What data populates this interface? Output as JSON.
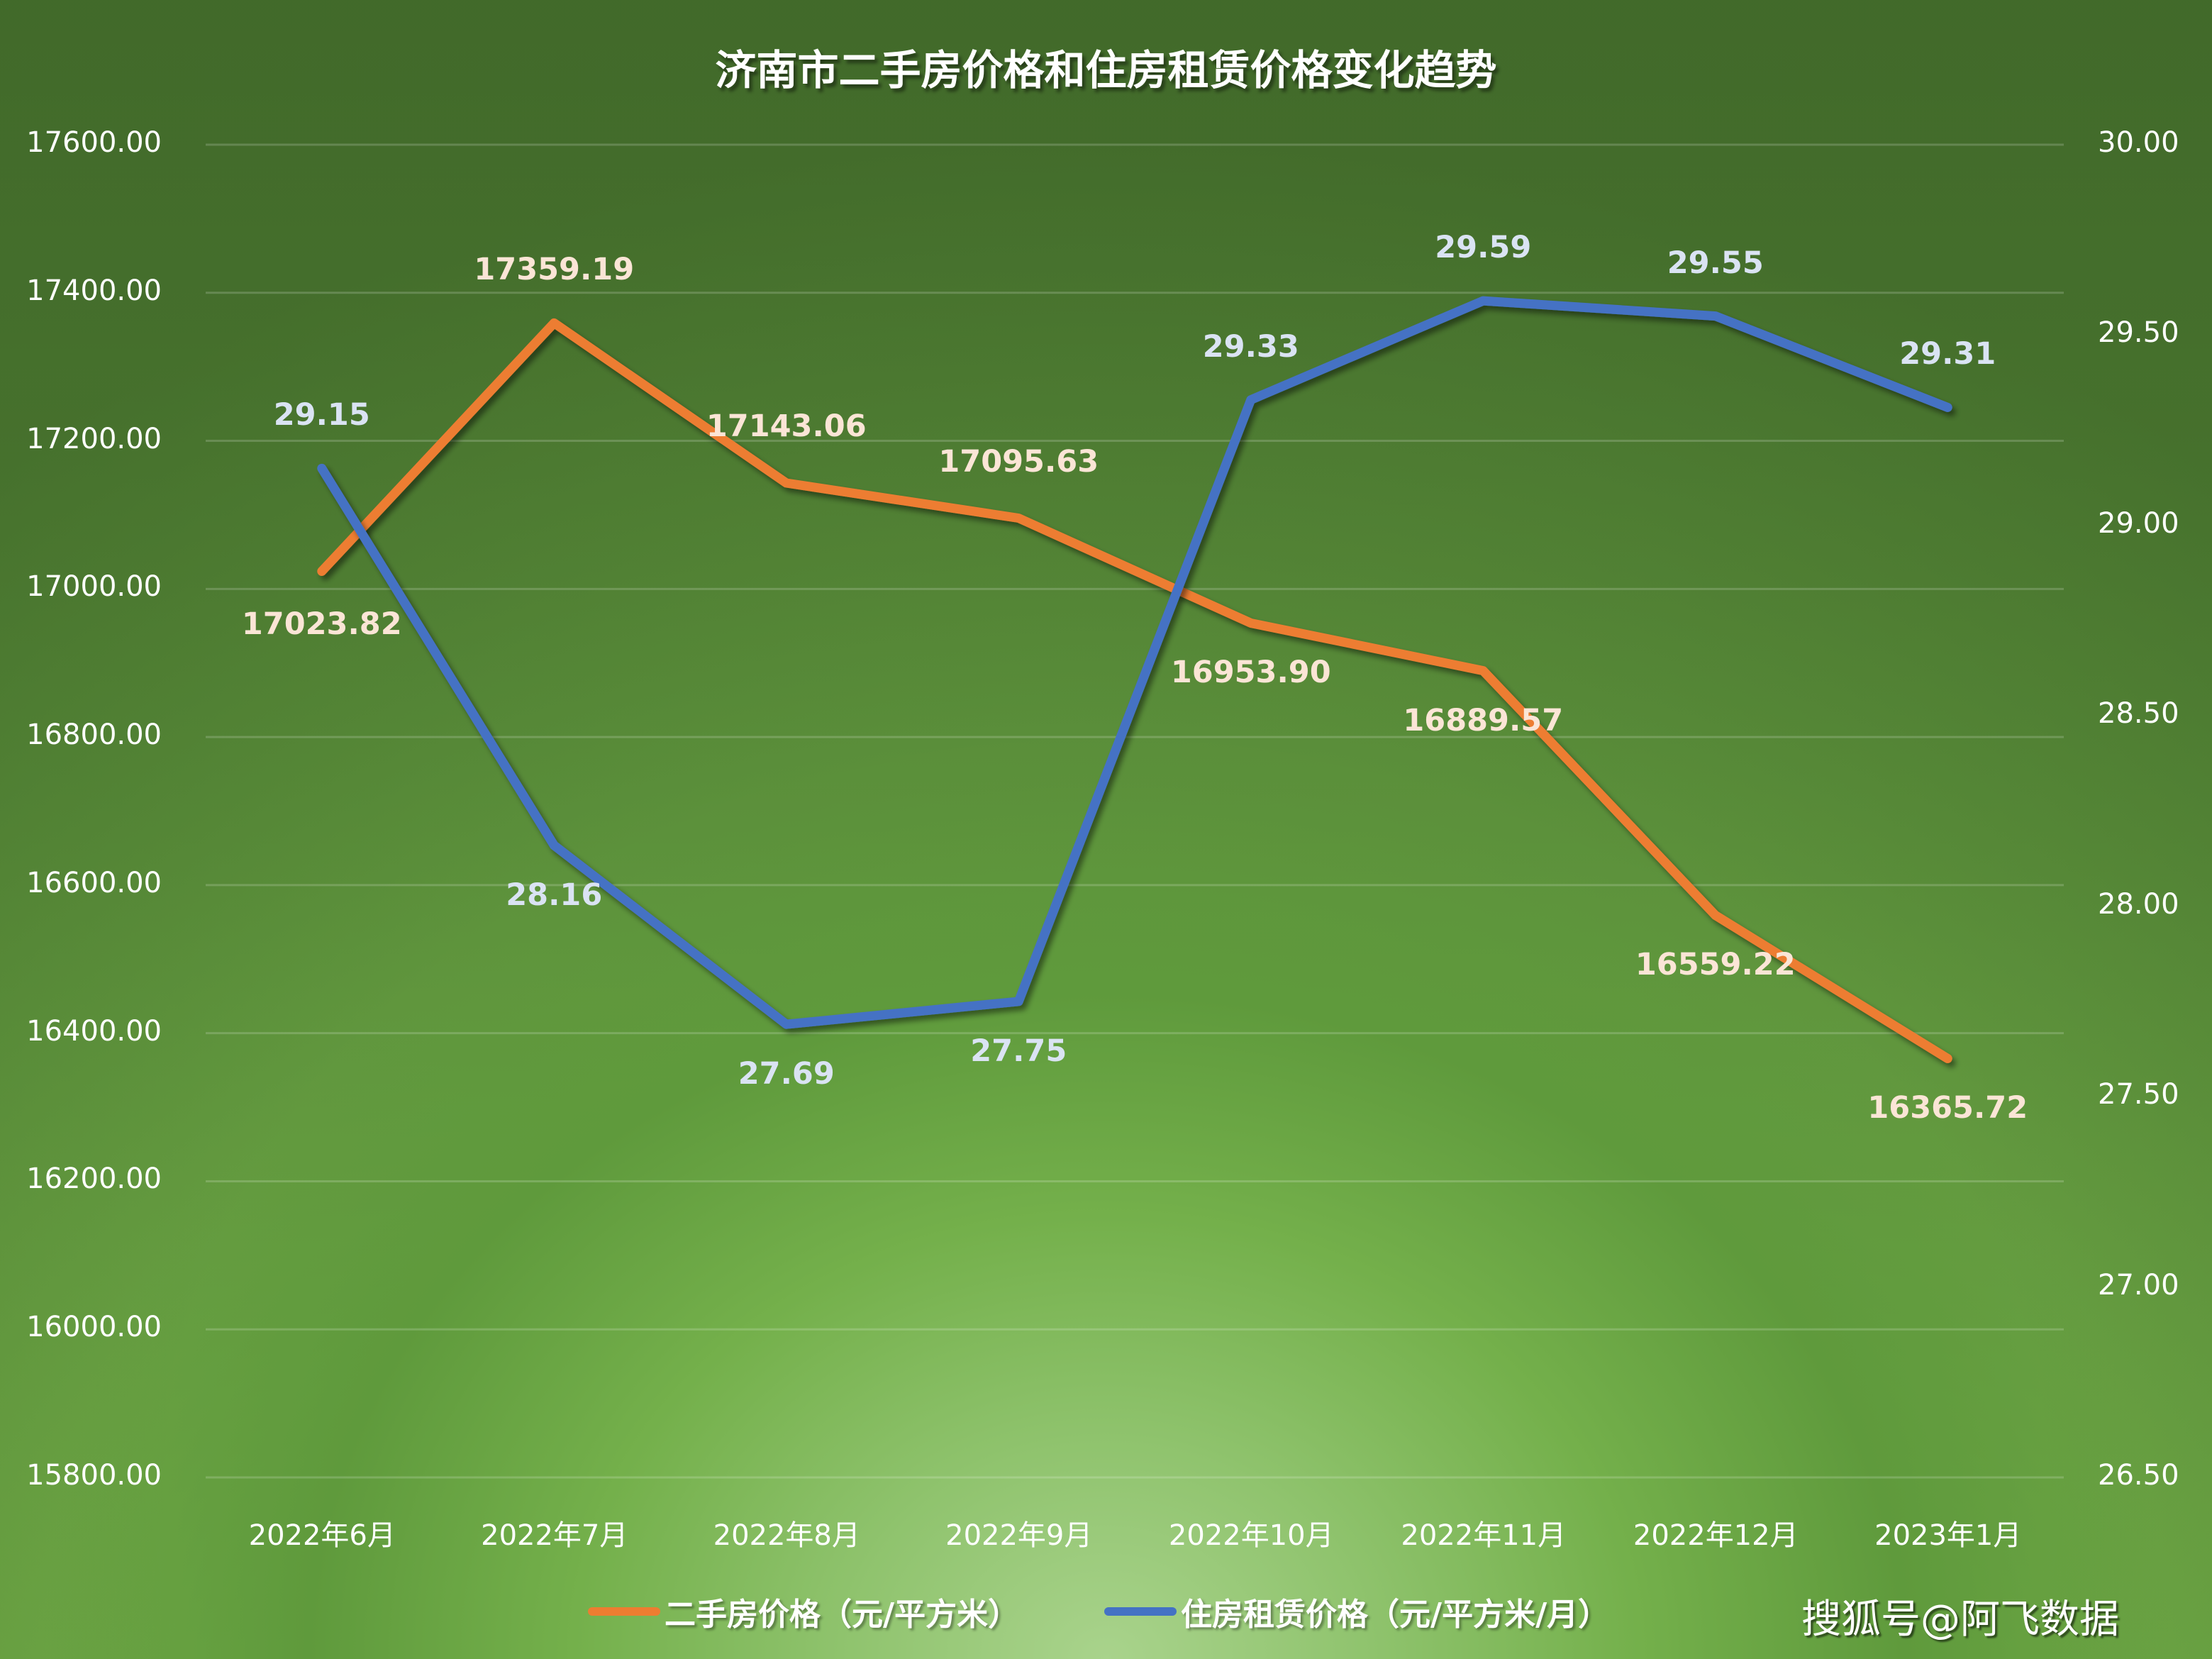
{
  "chart_data": {
    "type": "line",
    "title": "济南市二手房价格和住房租赁价格变化趋势",
    "categories": [
      "2022年6月",
      "2022年7月",
      "2022年8月",
      "2022年9月",
      "2022年10月",
      "2022年11月",
      "2022年12月",
      "2023年1月"
    ],
    "series": [
      {
        "name": "二手房价格（元/平方米）",
        "axis": "left",
        "color": "#ED7D31",
        "label_color": "#FBE5D6",
        "values": [
          17023.82,
          17359.19,
          17143.06,
          17095.63,
          16953.9,
          16889.57,
          16559.22,
          16365.72
        ],
        "labels": [
          "17023.82",
          "17359.19",
          "17143.06",
          "17095.63",
          "16953.90",
          "16889.57",
          "16559.22",
          "16365.72"
        ]
      },
      {
        "name": "住房租赁价格（元/平方米/月）",
        "axis": "right",
        "color": "#4472C4",
        "label_color": "#DAE3F3",
        "values": [
          29.15,
          28.16,
          27.69,
          27.75,
          29.33,
          29.59,
          29.55,
          29.31
        ],
        "labels": [
          "29.15",
          "28.16",
          "27.69",
          "27.75",
          "29.33",
          "29.59",
          "29.55",
          "29.31"
        ]
      }
    ],
    "y_left": {
      "min": 15800,
      "max": 17600,
      "step": 200,
      "ticks": [
        "17600.00",
        "17400.00",
        "17200.00",
        "17000.00",
        "16800.00",
        "16600.00",
        "16400.00",
        "16200.00",
        "16000.00",
        "15800.00"
      ]
    },
    "y_right": {
      "min": 26.5,
      "max": 30.0,
      "step": 0.5,
      "ticks": [
        "30.00",
        "29.50",
        "29.00",
        "28.50",
        "28.00",
        "27.50",
        "27.00",
        "26.50"
      ]
    },
    "xlabel": "",
    "ylabel": "",
    "grid": true,
    "legend_position": "bottom"
  },
  "legend": {
    "items": [
      {
        "label": "二手房价格（元/平方米）",
        "color": "#ED7D31"
      },
      {
        "label": "住房租赁价格（元/平方米/月）",
        "color": "#4472C4"
      }
    ]
  },
  "watermark": "搜狐号@阿飞数据"
}
